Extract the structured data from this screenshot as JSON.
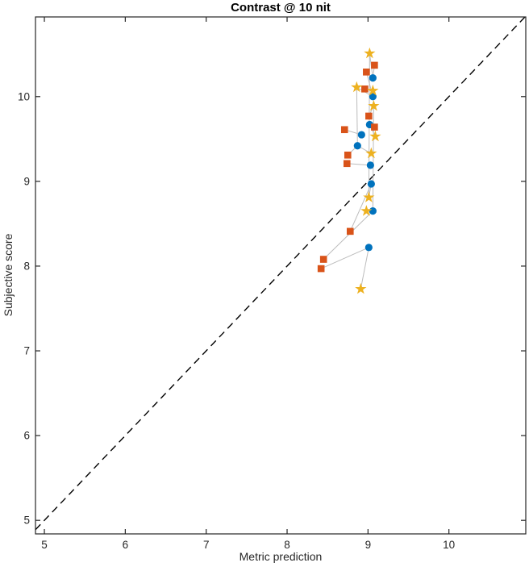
{
  "title": "Contrast @ 10 nit",
  "xlabel": "Metric prediction",
  "ylabel": "Subjective score",
  "chart_data": {
    "type": "scatter",
    "title": "Contrast @ 10 nit",
    "xlabel": "Metric prediction",
    "ylabel": "Subjective score",
    "xlim": [
      4.89,
      10.95
    ],
    "ylim": [
      4.84,
      10.94
    ],
    "xticks": [
      5,
      6,
      7,
      8,
      9,
      10
    ],
    "yticks": [
      5,
      6,
      7,
      8,
      9,
      10
    ],
    "grid": false,
    "legend": null,
    "axis_color": "#262626",
    "background_color": "#ffffff",
    "identity_line": {
      "type": "y=x",
      "style": "dashed",
      "color": "#000000"
    },
    "connector_color": "#bcbcbc",
    "series": [
      {
        "name": "circle-series",
        "marker": "circle",
        "color": "#0072BD",
        "points": [
          [
            9.06,
            10.22
          ],
          [
            9.06,
            10.0
          ],
          [
            9.02,
            9.67
          ],
          [
            8.92,
            9.55
          ],
          [
            8.87,
            9.42
          ],
          [
            9.03,
            9.19
          ],
          [
            9.04,
            8.97
          ],
          [
            9.06,
            8.65
          ],
          [
            9.01,
            8.22
          ]
        ]
      },
      {
        "name": "square-series",
        "marker": "square",
        "color": "#D95319",
        "points": [
          [
            9.08,
            10.37
          ],
          [
            8.98,
            10.29
          ],
          [
            8.96,
            10.09
          ],
          [
            9.01,
            9.77
          ],
          [
            9.08,
            9.64
          ],
          [
            8.71,
            9.61
          ],
          [
            8.75,
            9.31
          ],
          [
            8.74,
            9.21
          ],
          [
            8.78,
            8.41
          ],
          [
            8.45,
            8.08
          ],
          [
            8.42,
            7.97
          ]
        ]
      },
      {
        "name": "star-series",
        "marker": "star",
        "color": "#EDB120",
        "points": [
          [
            9.02,
            10.51
          ],
          [
            8.86,
            10.11
          ],
          [
            9.06,
            10.07
          ],
          [
            9.07,
            9.89
          ],
          [
            9.09,
            9.53
          ],
          [
            9.04,
            9.33
          ],
          [
            9.01,
            8.81
          ],
          [
            8.98,
            8.65
          ],
          [
            8.91,
            7.73
          ]
        ]
      }
    ],
    "connector_polylines": [
      [
        [
          9.08,
          10.37
        ],
        [
          9.06,
          10.22
        ],
        [
          9.02,
          10.51
        ]
      ],
      [
        [
          8.98,
          10.29
        ],
        [
          9.06,
          10.0
        ],
        [
          8.86,
          10.11
        ]
      ],
      [
        [
          8.96,
          10.09
        ],
        [
          9.06,
          10.07
        ]
      ],
      [
        [
          9.01,
          9.77
        ],
        [
          9.07,
          9.89
        ]
      ],
      [
        [
          9.08,
          9.64
        ],
        [
          9.02,
          9.67
        ],
        [
          9.09,
          9.53
        ]
      ],
      [
        [
          8.71,
          9.61
        ],
        [
          8.92,
          9.55
        ]
      ],
      [
        [
          8.75,
          9.31
        ],
        [
          8.87,
          9.42
        ],
        [
          9.04,
          9.33
        ]
      ],
      [
        [
          8.74,
          9.21
        ],
        [
          9.03,
          9.19
        ]
      ],
      [
        [
          8.78,
          8.41
        ],
        [
          9.04,
          8.97
        ],
        [
          9.01,
          8.81
        ]
      ],
      [
        [
          8.45,
          8.08
        ],
        [
          9.06,
          8.65
        ],
        [
          8.98,
          8.65
        ]
      ],
      [
        [
          8.42,
          7.97
        ],
        [
          9.01,
          8.22
        ],
        [
          8.91,
          7.73
        ]
      ],
      [
        [
          9.02,
          10.51
        ],
        [
          9.01,
          8.81
        ]
      ],
      [
        [
          8.86,
          10.11
        ],
        [
          8.87,
          9.42
        ]
      ],
      [
        [
          9.07,
          9.89
        ],
        [
          9.06,
          8.65
        ]
      ]
    ]
  }
}
